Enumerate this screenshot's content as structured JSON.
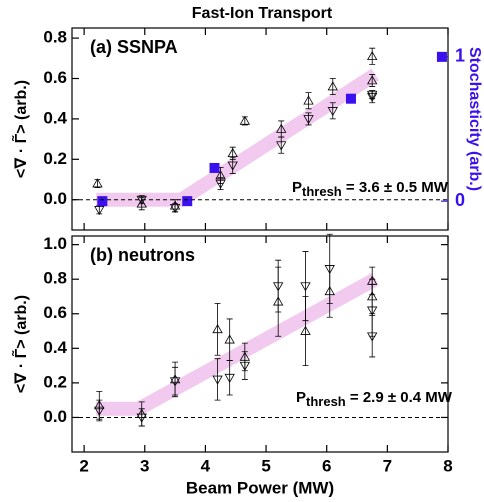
{
  "chart_data": [
    {
      "type": "scatter",
      "title": "Fast-Ion Transport",
      "ylabel": "<∇ · Γ̃> (arb.)",
      "y2label": "Stochasticity (arb.)",
      "y2color": "#3a10ee",
      "annotations": [
        "(a) SSNPA",
        {
          "main": "P",
          "sub": "thresh",
          "rest": " = 3.6 ± 0.5 MW"
        }
      ],
      "xlim": [
        1.8,
        8
      ],
      "xticks": [
        2,
        3,
        4,
        5,
        6,
        7,
        8
      ],
      "ylim": [
        -0.15,
        0.85
      ],
      "yticks": [
        {
          "value": 0,
          "label": "0.0"
        },
        0.2,
        0.4,
        0.6,
        0.8
      ],
      "y2lim": [
        -0.2,
        1.2
      ],
      "y2ticks": [
        0,
        1
      ],
      "zero_line": 0,
      "series": [
        {
          "style": "band",
          "color": "#f2c9ef",
          "x": [
            2.2,
            3.6,
            6.8
          ],
          "values": [
            0,
            0,
            0.62
          ]
        },
        {
          "style": "triangle-up",
          "color": "#000000",
          "x": [
            2.22,
            2.95,
            3.5,
            4.25,
            4.45,
            4.65,
            5.25,
            5.7,
            6.1,
            6.75,
            6.75
          ],
          "values": [
            0.08,
            -0.02,
            -0.03,
            0.12,
            0.23,
            0.39,
            0.35,
            0.49,
            0.56,
            0.71,
            0.59
          ],
          "errors": [
            0.02,
            0.03,
            0.03,
            0.04,
            0.03,
            0.02,
            0.04,
            0.04,
            0.04,
            0.04,
            0.03
          ]
        },
        {
          "style": "triangle-down",
          "color": "#000000",
          "x": [
            2.25,
            2.95,
            3.5,
            4.25,
            4.45,
            5.25,
            5.7,
            6.1,
            6.75,
            6.75
          ],
          "values": [
            -0.05,
            0.0,
            -0.04,
            0.08,
            0.17,
            0.27,
            0.4,
            0.44,
            0.51,
            0.52
          ],
          "errors": [
            0.02,
            0.02,
            0.02,
            0.03,
            0.04,
            0.04,
            0.03,
            0.04,
            0.03,
            0.02
          ]
        },
        {
          "style": "square",
          "color": "#3a10ee",
          "axis": "y2",
          "x": [
            2.3,
            3.7,
            4.15,
            6.4,
            7.9
          ],
          "values": [
            0,
            0,
            0.23,
            0.71,
            1.0
          ]
        }
      ]
    },
    {
      "type": "scatter",
      "ylabel": "<∇ · Γ̃> (arb.)",
      "xlabel": "Beam Power (MW)",
      "annotations": [
        "(b) neutrons",
        {
          "main": "P",
          "sub": "thresh",
          "rest": " = 2.9 ± 0.4 MW"
        }
      ],
      "xlim": [
        1.8,
        8
      ],
      "xticks": [
        2,
        3,
        4,
        5,
        6,
        7,
        8
      ],
      "ylim": [
        -0.2,
        1.05
      ],
      "yticks": [
        {
          "value": 0,
          "label": "0.0"
        },
        0.2,
        0.4,
        0.6,
        0.8,
        {
          "value": 1,
          "label": "1.0"
        }
      ],
      "zero_line": 0,
      "series": [
        {
          "style": "band",
          "color": "#f2c9ef",
          "x": [
            2.2,
            2.9,
            6.8
          ],
          "values": [
            0.05,
            0.05,
            0.8
          ]
        },
        {
          "style": "triangle-up",
          "color": "#000000",
          "x": [
            2.25,
            2.95,
            3.5,
            4.2,
            4.4,
            4.65,
            5.2,
            5.65,
            6.05,
            6.75,
            6.75
          ],
          "values": [
            0.07,
            0.02,
            0.22,
            0.51,
            0.45,
            0.35,
            0.67,
            0.5,
            0.73,
            0.79,
            0.7
          ],
          "errors": [
            0.08,
            0.07,
            0.1,
            0.15,
            0.12,
            0.08,
            0.2,
            0.2,
            0.15,
            0.08,
            0.1
          ]
        },
        {
          "style": "triangle-down",
          "color": "#000000",
          "x": [
            2.25,
            2.95,
            3.5,
            4.2,
            4.4,
            4.65,
            5.2,
            5.65,
            6.05,
            6.75,
            6.75
          ],
          "values": [
            0.04,
            0.0,
            0.21,
            0.22,
            0.23,
            0.3,
            0.76,
            0.76,
            0.86,
            0.62,
            0.47
          ],
          "errors": [
            0.06,
            0.05,
            0.08,
            0.12,
            0.1,
            0.08,
            0.15,
            0.2,
            0.2,
            0.15,
            0.12
          ]
        }
      ]
    }
  ]
}
